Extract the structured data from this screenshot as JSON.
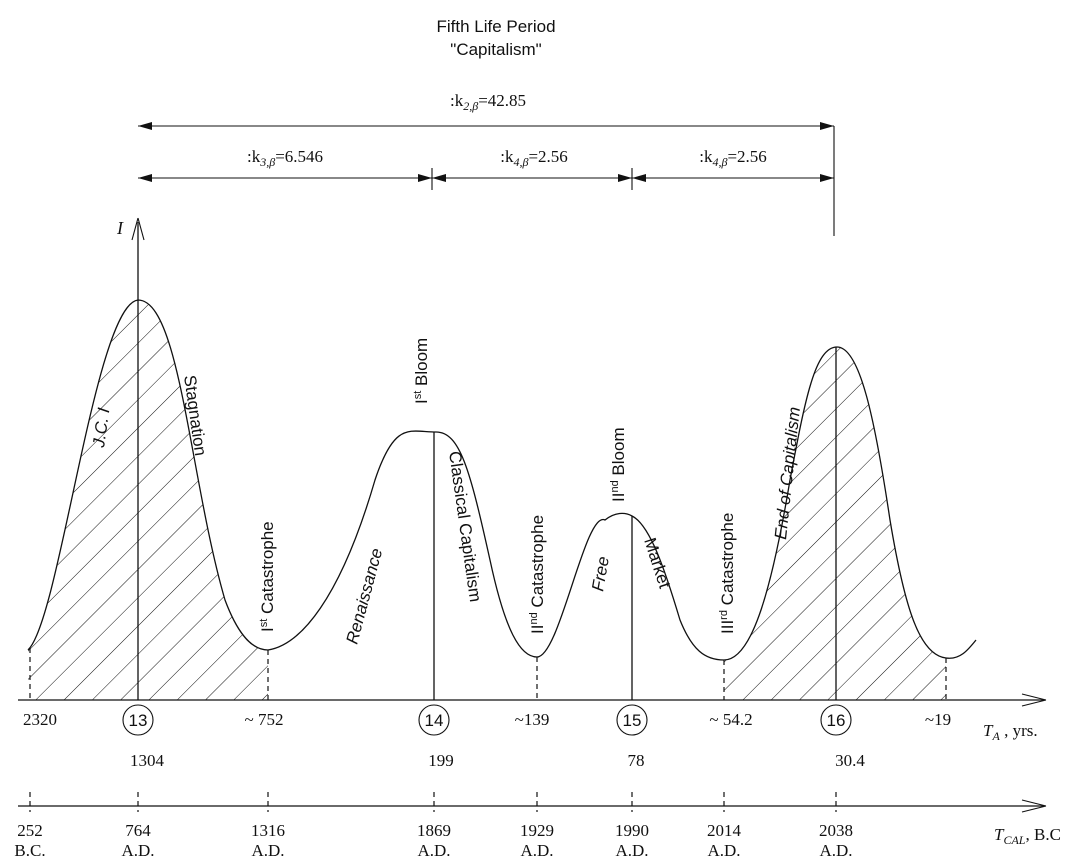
{
  "title": {
    "line1": "Fifth Life Period",
    "line2": "\"Capitalism\""
  },
  "spans": {
    "k2": {
      "prefix": ":k",
      "sub": "2,β",
      "value": "=42.85"
    },
    "k3": {
      "prefix": ":k",
      "sub": "3,β",
      "value": "=6.546"
    },
    "k4a": {
      "prefix": ":k",
      "sub": "4,β",
      "value": "=2.56"
    },
    "k4b": {
      "prefix": ":k",
      "sub": "4,β",
      "value": "=2.56"
    }
  },
  "y_axis_label": "I",
  "curve_labels": {
    "jci": "J.C. I",
    "stagnation": "Stagnation",
    "cat1": {
      "base": "I",
      "sup": "st",
      "rest": " Catastrophe"
    },
    "renaissance": "Renaissance",
    "bloom1": {
      "base": "I",
      "sup": "st",
      "rest": " Bloom"
    },
    "classical": "Classical Capitalism",
    "cat2": {
      "base": "II",
      "sup": "nd",
      "rest": " Catastrophe"
    },
    "free": "Free",
    "bloom2": {
      "base": "II",
      "sup": "nd",
      "rest": " Bloom"
    },
    "market": "Market",
    "cat3": {
      "base": "III",
      "sup": "rd",
      "rest": " Catastrophe"
    },
    "end": "End of Capitalism"
  },
  "axis_ta": {
    "label_main": "T",
    "label_sub": "A",
    "label_rest": " , yrs.",
    "ticks": [
      "2320",
      "~ 752",
      "~139",
      "~ 54.2",
      "~19"
    ],
    "circled": [
      "13",
      "14",
      "15",
      "16"
    ],
    "values_below": [
      "1304",
      "199",
      "78",
      "30.4"
    ]
  },
  "axis_tcal": {
    "label_main": "T",
    "label_sub": "CAL",
    "label_rest": ", B.C",
    "years": [
      "252",
      "764",
      "1316",
      "1869",
      "1929",
      "1990",
      "2014",
      "2038"
    ],
    "eras": [
      "B.C.",
      "A.D.",
      "A.D.",
      "A.D.",
      "A.D.",
      "A.D.",
      "A.D.",
      "A.D."
    ]
  }
}
